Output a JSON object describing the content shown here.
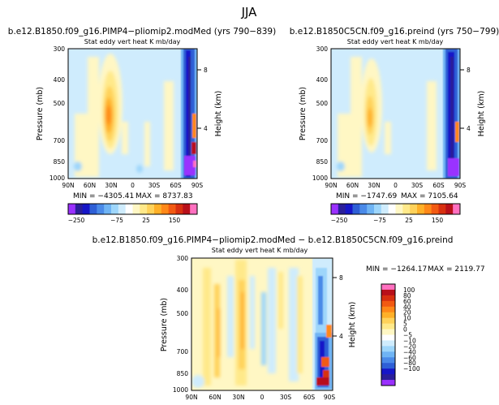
{
  "figure_title": "JJA",
  "palette": [
    "#9a30ff",
    "#2a1e9a",
    "#1616c8",
    "#2e5fd6",
    "#4a8ae8",
    "#6fb4f4",
    "#9ed6fb",
    "#cfecfd",
    "#ffffff",
    "#fff7c4",
    "#ffe98a",
    "#ffd25a",
    "#ffb028",
    "#ff8818",
    "#f25a12",
    "#d83010",
    "#b8101a",
    "#ff70c0"
  ],
  "chart_data": [
    {
      "type": "heatmap",
      "title": "b.e12.B1850.f09_g16.PIMP4−pliomip2.modMed (yrs 790−839)",
      "subtitle": "Stat eddy vert heat     K mb/day",
      "xlabel": "",
      "ylabel": "Pressure (mb)",
      "y2label": "Height (km)",
      "x_ticks": [
        "90N",
        "60N",
        "30N",
        "0",
        "30S",
        "60S",
        "90S"
      ],
      "y_ticks": [
        "300",
        "400",
        "500",
        "700",
        "850",
        "1000"
      ],
      "y2_ticks": [
        "8",
        "4"
      ],
      "min_label": "MIN = −4305.41",
      "max_label": "MAX = 8737.83",
      "colorbar_labels": [
        "−250",
        "−75",
        "25",
        "150"
      ]
    },
    {
      "type": "heatmap",
      "title": "b.e12.B1850C5CN.f09_g16.preind (yrs 750−799)",
      "subtitle": "Stat eddy vert heat     K mb/day",
      "xlabel": "",
      "ylabel": "Pressure (mb)",
      "y2label": "Height (km)",
      "x_ticks": [
        "90N",
        "60N",
        "30N",
        "0",
        "30S",
        "60S",
        "90S"
      ],
      "y_ticks": [
        "300",
        "400",
        "500",
        "700",
        "850",
        "1000"
      ],
      "y2_ticks": [
        "8",
        "4"
      ],
      "min_label": "MIN = −1747.69",
      "max_label": "MAX = 7105.64",
      "colorbar_labels": [
        "−250",
        "−75",
        "25",
        "150"
      ]
    },
    {
      "type": "heatmap",
      "title": "b.e12.B1850.f09_g16.PIMP4−pliomip2.modMed − b.e12.B1850C5CN.f09_g16.preind",
      "subtitle": "Stat eddy vert heat     K mb/day",
      "xlabel": "",
      "ylabel": "Pressure (mb)",
      "y2label": "Height (km)",
      "x_ticks": [
        "90N",
        "60N",
        "30N",
        "0",
        "30S",
        "60S",
        "90S"
      ],
      "y_ticks": [
        "300",
        "400",
        "500",
        "700",
        "850",
        "1000"
      ],
      "y2_ticks": [
        "8",
        "4"
      ],
      "min_label": "MIN = −1264.17",
      "max_label": "MAX = 2119.77",
      "colorbar_labels": [
        "100",
        "80",
        "60",
        "40",
        "20",
        "10",
        "5",
        "0",
        "−5",
        "−10",
        "−20",
        "−40",
        "−60",
        "−80",
        "−100"
      ]
    }
  ]
}
